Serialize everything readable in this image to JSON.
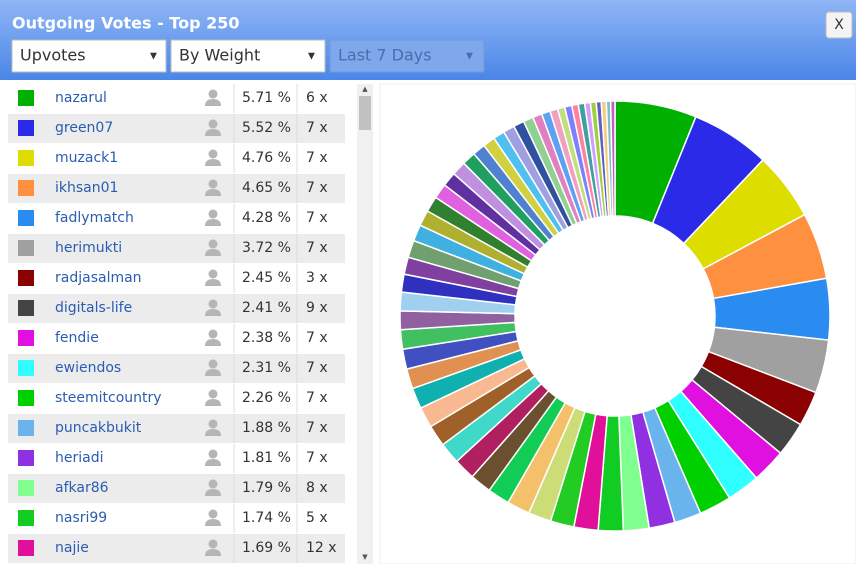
{
  "header": {
    "title": "Outgoing Votes - Top 250",
    "close": "X",
    "dropdowns": [
      "Upvotes",
      "By Weight",
      "Last 7 Days"
    ]
  },
  "table": {
    "counts": [
      "6 x",
      "7 x",
      "7 x",
      "7 x",
      "7 x",
      "7 x",
      "3 x",
      "9 x",
      "7 x",
      "7 x",
      "7 x",
      "7 x",
      "7 x",
      "8 x",
      "5 x",
      "12 x"
    ]
  },
  "chart_data": {
    "type": "pie",
    "donut": true,
    "categories": [
      "nazarul",
      "green07",
      "muzack1",
      "ikhsan01",
      "fadlymatch",
      "herimukti",
      "radjasalman",
      "digitals-life",
      "fendie",
      "ewiendos",
      "steemitcountry",
      "puncakbukit",
      "heriadi",
      "afkar86",
      "nasri99",
      "najie",
      null,
      null,
      null,
      null,
      null,
      null,
      null,
      null,
      null,
      null,
      null,
      null,
      null,
      null,
      null,
      null,
      null,
      null,
      null,
      null,
      null,
      null,
      null,
      null,
      null,
      null,
      null,
      null,
      null,
      null,
      null,
      null,
      null,
      null,
      null,
      null,
      null,
      null,
      null,
      null,
      null,
      null,
      null,
      null
    ],
    "values": [
      5.71,
      5.52,
      4.76,
      4.65,
      4.28,
      3.72,
      2.45,
      2.41,
      2.38,
      2.31,
      2.26,
      1.88,
      1.81,
      1.79,
      1.74,
      1.69,
      1.65,
      1.6,
      1.6,
      1.55,
      1.5,
      1.5,
      1.5,
      1.5,
      1.45,
      1.45,
      1.4,
      1.4,
      1.35,
      1.3,
      1.3,
      1.25,
      1.2,
      1.2,
      1.15,
      1.1,
      1.1,
      1.05,
      1.0,
      1.0,
      0.95,
      0.9,
      0.85,
      0.8,
      0.8,
      0.75,
      0.7,
      0.65,
      0.6,
      0.55,
      0.5,
      0.5,
      0.45,
      0.45,
      0.4,
      0.4,
      0.35,
      0.35,
      0.3,
      0.3
    ],
    "value_labels": [
      "5.71 %",
      "5.52 %",
      "4.76 %",
      "4.65 %",
      "4.28 %",
      "3.72 %",
      "2.45 %",
      "2.41 %",
      "2.38 %",
      "2.31 %",
      "2.26 %",
      "1.88 %",
      "1.81 %",
      "1.79 %",
      "1.74 %",
      "1.69 %",
      null,
      null,
      null,
      null,
      null,
      null,
      null,
      null,
      null,
      null,
      null,
      null,
      null,
      null,
      null,
      null,
      null,
      null,
      null,
      null,
      null,
      null,
      null,
      null,
      null,
      null,
      null,
      null,
      null,
      null,
      null,
      null,
      null,
      null,
      null,
      null,
      null,
      null,
      null,
      null,
      null,
      null,
      null,
      null
    ],
    "colors": [
      "#00b000",
      "#2a2ae8",
      "#dddd00",
      "#ff9040",
      "#2a8cf0",
      "#a0a0a0",
      "#8b0000",
      "#444444",
      "#e010e0",
      "#30ffff",
      "#00d000",
      "#6ab4ee",
      "#9030e0",
      "#80ff90",
      "#11cc22",
      "#e0109a",
      "#22cc22",
      "#ccdd77",
      "#f5c06a",
      "#11cc55",
      "#6b5030",
      "#b02060",
      "#40d8c8",
      "#a0602a",
      "#f8b890",
      "#10b0b0",
      "#e09050",
      "#4050c0",
      "#40c060",
      "#9060a0",
      "#a0d0f0",
      "#3030c0",
      "#8040a0",
      "#70a070",
      "#40b0e0",
      "#b0b030",
      "#308030",
      "#e060e0",
      "#6030a0",
      "#c090e0",
      "#20a060",
      "#5080d0",
      "#d0d040",
      "#50c0f0",
      "#a0a0e0",
      "#3050a0",
      "#90d090",
      "#e080c0",
      "#60a0f0",
      "#f0a0c0",
      "#c0e080",
      "#8080ff",
      "#ff80a0",
      "#40a0a0",
      "#d0a0ff",
      "#a0d040",
      "#6060c0",
      "#f0d080",
      "#80c0c0",
      "#c060c0"
    ]
  }
}
